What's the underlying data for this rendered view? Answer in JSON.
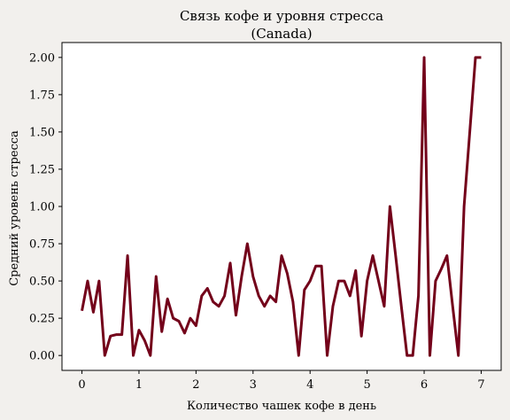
{
  "chart_data": {
    "type": "line",
    "title_line1": "Связь кофе и уровня стресса",
    "title_line2": "(Canada)",
    "xlabel": "Количество чашек кофе в день",
    "ylabel": "Средний уровень стресса",
    "xlim": [
      -0.35,
      7.35
    ],
    "ylim": [
      -0.1,
      2.1
    ],
    "x_ticks": [
      0,
      1,
      2,
      3,
      4,
      5,
      6,
      7
    ],
    "x_tick_labels": [
      "0",
      "1",
      "2",
      "3",
      "4",
      "5",
      "6",
      "7"
    ],
    "y_ticks": [
      0.0,
      0.25,
      0.5,
      0.75,
      1.0,
      1.25,
      1.5,
      1.75,
      2.0
    ],
    "y_tick_labels": [
      "0.00",
      "0.25",
      "0.50",
      "0.75",
      "1.00",
      "1.25",
      "1.50",
      "1.75",
      "2.00"
    ],
    "grid": false,
    "line_color": "#73001a",
    "series": [
      {
        "x": [
          0.0,
          0.1,
          0.2,
          0.3,
          0.4,
          0.5,
          0.6,
          0.7,
          0.8,
          0.9,
          1.0,
          1.1,
          1.2,
          1.3,
          1.4,
          1.5,
          1.6,
          1.7,
          1.8,
          1.9,
          2.0,
          2.1,
          2.2,
          2.3,
          2.4,
          2.5,
          2.6,
          2.7,
          2.8,
          2.9,
          3.0,
          3.1,
          3.2,
          3.3,
          3.4,
          3.5,
          3.6,
          3.7,
          3.8,
          3.9,
          4.0,
          4.1,
          4.2,
          4.3,
          4.4,
          4.5,
          4.6,
          4.7,
          4.8,
          4.9,
          5.0,
          5.1,
          5.2,
          5.3,
          5.4,
          5.5,
          5.6,
          5.7,
          5.8,
          5.9,
          6.0,
          6.1,
          6.2,
          6.3,
          6.4,
          6.5,
          6.6,
          6.7,
          6.8,
          6.9,
          7.0
        ],
        "y": [
          0.3,
          0.5,
          0.29,
          0.5,
          0.0,
          0.13,
          0.14,
          0.14,
          0.67,
          0.0,
          0.17,
          0.1,
          0.0,
          0.53,
          0.16,
          0.38,
          0.25,
          0.23,
          0.15,
          0.25,
          0.2,
          0.4,
          0.45,
          0.36,
          0.33,
          0.4,
          0.62,
          0.27,
          0.53,
          0.75,
          0.53,
          0.4,
          0.33,
          0.4,
          0.36,
          0.67,
          0.55,
          0.36,
          0.0,
          0.44,
          0.5,
          0.6,
          0.6,
          0.0,
          0.33,
          0.5,
          0.5,
          0.4,
          0.57,
          0.13,
          0.5,
          0.67,
          0.5,
          0.33,
          1.0,
          0.67,
          0.33,
          0.0,
          0.0,
          0.4,
          2.0,
          0.0,
          0.5,
          0.58,
          0.67,
          0.33,
          0.0,
          1.0,
          1.5,
          2.0,
          2.0
        ]
      }
    ]
  }
}
